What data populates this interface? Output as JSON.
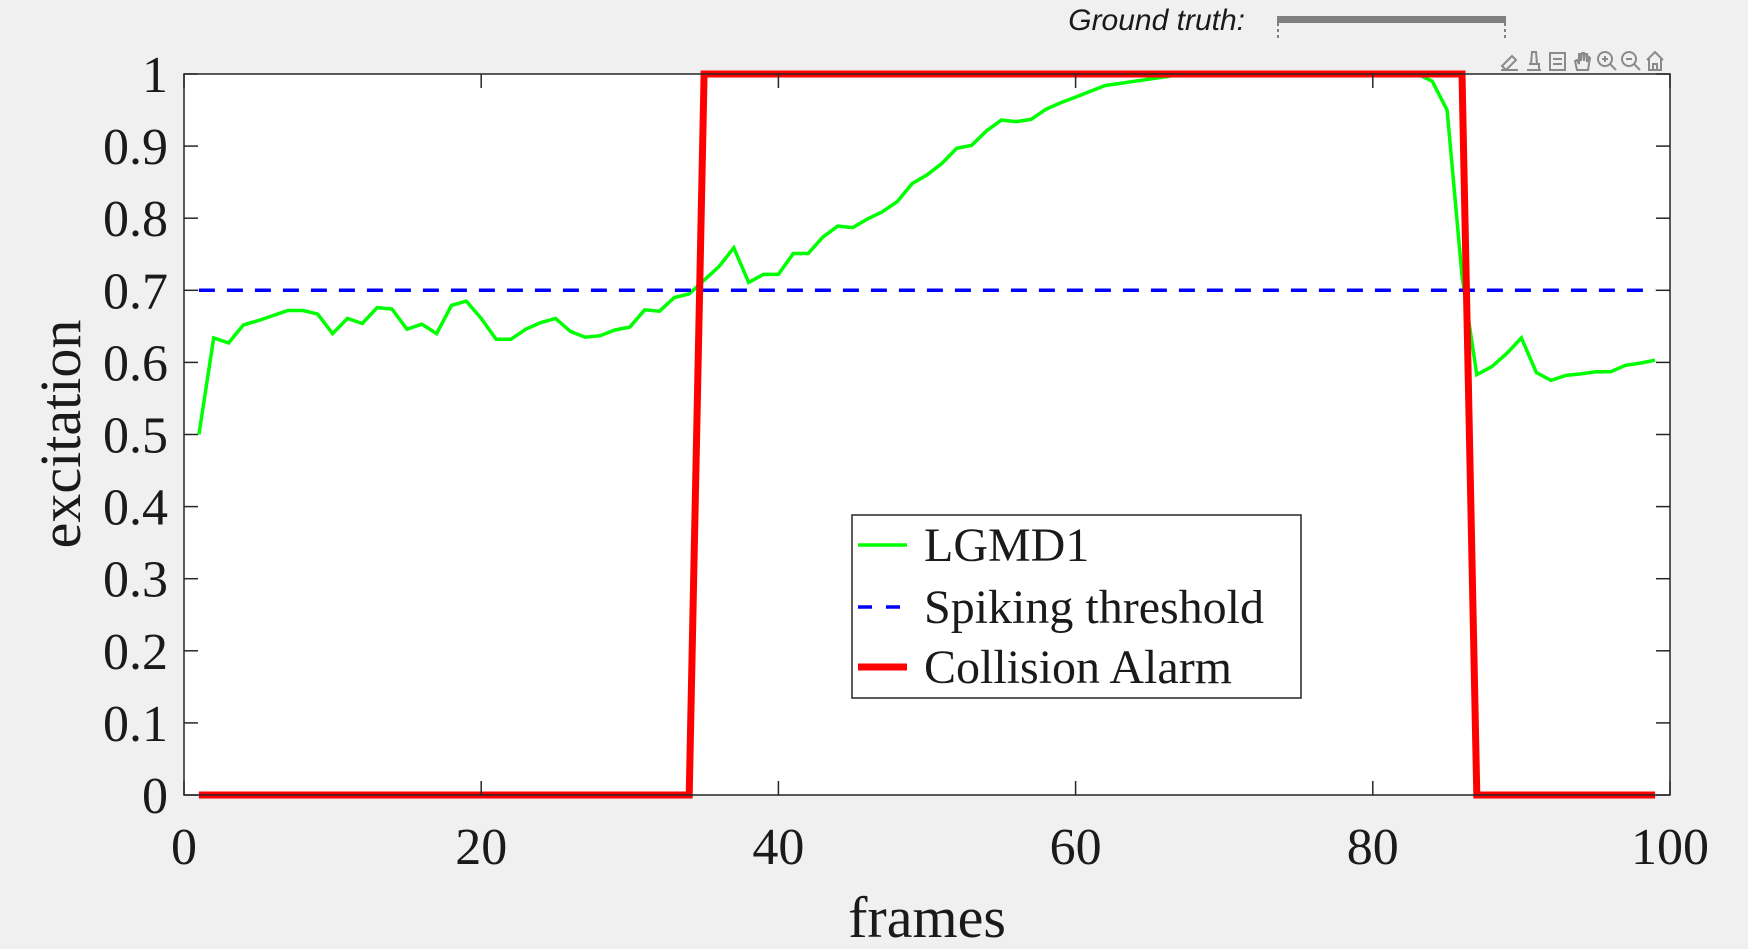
{
  "ground_truth": {
    "label": "Ground truth:"
  },
  "toolbar": {
    "icons": [
      "brush-icon",
      "data-tips-icon",
      "legend-toggle-icon",
      "pan-hand-icon",
      "zoom-in-icon",
      "zoom-out-icon",
      "home-icon"
    ]
  },
  "colors": {
    "background": "#f0f0f0",
    "axes_background": "#ffffff",
    "lgmd1": "#00ff00",
    "threshold": "#0000ff",
    "alarm": "#ff0000",
    "ground_truth_bar": "#808080"
  },
  "chart_data": {
    "type": "line",
    "title": "",
    "xlabel": "frames",
    "ylabel": "excitation",
    "xlim": [
      0,
      100
    ],
    "ylim": [
      0,
      1
    ],
    "xticks": [
      "0",
      "20",
      "40",
      "60",
      "80",
      "100"
    ],
    "yticks": [
      "0",
      "0.1",
      "0.2",
      "0.3",
      "0.4",
      "0.5",
      "0.6",
      "0.7",
      "0.8",
      "0.9",
      "1"
    ],
    "grid": false,
    "legend_position": "bottom-center",
    "series": [
      {
        "name": "LGMD1",
        "style": "solid",
        "color": "#00ff00",
        "x": [
          1,
          2,
          3,
          4,
          5,
          6,
          7,
          8,
          9,
          10,
          11,
          12,
          13,
          14,
          15,
          16,
          17,
          18,
          19,
          20,
          21,
          22,
          23,
          24,
          25,
          26,
          27,
          28,
          29,
          30,
          31,
          32,
          33,
          34,
          35,
          36,
          37,
          38,
          39,
          40,
          41,
          42,
          43,
          44,
          45,
          46,
          47,
          48,
          49,
          50,
          51,
          52,
          53,
          54,
          55,
          56,
          57,
          58,
          59,
          60,
          61,
          62,
          63,
          64,
          65,
          66,
          67,
          68,
          69,
          70,
          71,
          72,
          73,
          74,
          75,
          76,
          77,
          78,
          79,
          80,
          81,
          82,
          83,
          84,
          85,
          86,
          87,
          88,
          89,
          90,
          91,
          92,
          93,
          94,
          95,
          96,
          97,
          98,
          99
        ],
        "y": [
          0.5,
          0.634,
          0.627,
          0.652,
          0.658,
          0.665,
          0.672,
          0.672,
          0.667,
          0.64,
          0.661,
          0.654,
          0.676,
          0.674,
          0.646,
          0.653,
          0.64,
          0.679,
          0.685,
          0.661,
          0.632,
          0.632,
          0.646,
          0.655,
          0.661,
          0.643,
          0.635,
          0.637,
          0.645,
          0.649,
          0.673,
          0.671,
          0.69,
          0.695,
          0.714,
          0.733,
          0.759,
          0.711,
          0.722,
          0.722,
          0.751,
          0.751,
          0.774,
          0.789,
          0.787,
          0.799,
          0.809,
          0.823,
          0.848,
          0.86,
          0.876,
          0.897,
          0.901,
          0.921,
          0.936,
          0.934,
          0.937,
          0.951,
          0.96,
          0.968,
          0.976,
          0.984,
          0.987,
          0.99,
          0.993,
          0.996,
          0.999,
          1.0,
          1.0,
          1.0,
          1.0,
          1.0,
          1.0,
          1.0,
          1.0,
          1.0,
          1.0,
          1.0,
          1.0,
          1.0,
          1.0,
          1.0,
          1.0,
          0.99,
          0.95,
          0.72,
          0.583,
          0.594,
          0.612,
          0.634,
          0.586,
          0.575,
          0.582,
          0.584,
          0.587,
          0.587,
          0.596,
          0.599,
          0.603
        ]
      },
      {
        "name": "Spiking threshold",
        "style": "dashed",
        "color": "#0000ff",
        "x": [
          1,
          99
        ],
        "y": [
          0.7,
          0.7
        ]
      },
      {
        "name": "Collision Alarm",
        "style": "solid-thick",
        "color": "#ff0000",
        "x": [
          1,
          34,
          35,
          86,
          87,
          99
        ],
        "y": [
          0,
          0,
          1,
          1,
          0,
          0
        ]
      }
    ]
  }
}
